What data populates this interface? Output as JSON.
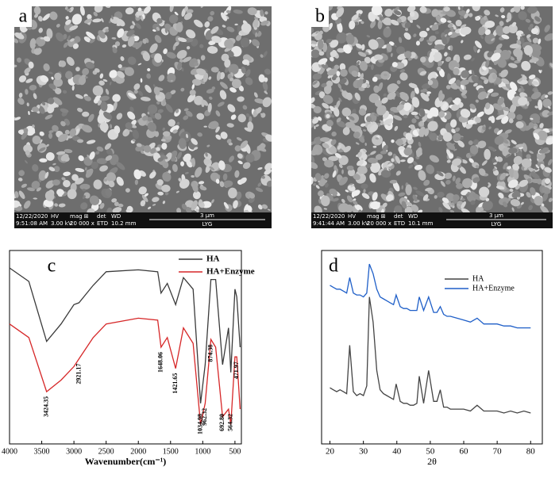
{
  "images": [
    {
      "label": "a",
      "date": "12/22/2020",
      "time": "9:51:08 AM",
      "hv_label": "HV",
      "hv": "3.00 kV",
      "mag_label": "mag ⊞",
      "mag": "20 000 x",
      "det_label": "det",
      "det": "ETD",
      "wd_label": "WD",
      "wd": "10.2 mm",
      "scale": "3 μm",
      "operator": "LYG"
    },
    {
      "label": "b",
      "date": "12/22/2020",
      "time": "9:41:44 AM",
      "hv_label": "HV",
      "hv": "3.00 kV",
      "mag_label": "mag ⊞",
      "mag": "20 000 x",
      "det_label": "det",
      "det": "ETD",
      "wd_label": "WD",
      "wd": "10.1 mm",
      "scale": "3 μm",
      "operator": "LYG"
    }
  ],
  "chart_data": [
    {
      "type": "line",
      "label": "c",
      "x_label": "Wavenumber(cm⁻¹)",
      "x": [
        4000,
        3700,
        3424,
        3200,
        3000,
        2921,
        2700,
        2500,
        2000,
        1700,
        1648,
        1550,
        1421,
        1300,
        1150,
        1034,
        962,
        874,
        800,
        692,
        600,
        564,
        500,
        471,
        420
      ],
      "xlim": [
        4000,
        400
      ],
      "xticks": [
        4000,
        3500,
        3000,
        2500,
        2000,
        1500,
        1000,
        500
      ],
      "ylim": [
        0,
        100
      ],
      "series": [
        {
          "name": "HA",
          "color": "#3a3a3a",
          "values": [
            91,
            84,
            53,
            62,
            72,
            73,
            82,
            89,
            90,
            89,
            78,
            83,
            72,
            86,
            80,
            21,
            41,
            85,
            85,
            41,
            60,
            37,
            80,
            76,
            50
          ]
        },
        {
          "name": "HA+Enzyme",
          "color": "#d62728",
          "values": [
            62,
            55,
            27,
            33,
            40,
            44,
            55,
            62,
            65,
            64,
            50,
            55,
            39,
            60,
            52,
            10,
            21,
            54,
            50,
            14,
            18,
            10,
            45,
            45,
            18
          ]
        }
      ],
      "annotations": [
        3424.35,
        2921.17,
        1648.06,
        1421.65,
        1034.98,
        962.32,
        874.38,
        {
          "value": 692.8,
          "label": "692.80"
        },
        564.32,
        471.97
      ]
    },
    {
      "type": "line",
      "label": "d",
      "x_label": "2θ",
      "x": [
        20,
        21,
        22,
        23,
        24,
        25,
        25.9,
        27,
        28,
        29,
        30,
        31,
        31.8,
        32.9,
        34,
        35,
        36,
        37,
        38,
        39,
        39.8,
        41,
        42,
        43,
        44,
        45,
        46,
        46.7,
        48,
        49.5,
        51,
        52,
        53,
        54,
        55,
        56,
        58,
        60,
        62,
        64,
        66,
        68,
        70,
        72,
        74,
        76,
        78,
        80
      ],
      "xlim": [
        17.5,
        83.5
      ],
      "xticks": [
        20,
        30,
        40,
        50,
        60,
        70,
        80
      ],
      "ylim": [
        0,
        100
      ],
      "series": [
        {
          "name": "HA",
          "color": "#444444",
          "values": [
            29,
            28,
            27,
            28,
            27,
            26,
            51,
            27,
            25,
            26,
            25,
            30,
            76,
            63,
            38,
            28,
            26,
            25,
            24,
            23,
            31,
            22,
            21,
            21,
            20,
            20,
            21,
            35,
            21,
            38,
            22,
            22,
            28,
            19,
            19,
            18,
            18,
            18,
            17,
            20,
            17,
            17,
            17,
            16,
            17,
            16,
            17,
            16
          ]
        },
        {
          "name": "HA+Enzyme",
          "color": "#1f5fc8",
          "values": [
            82,
            81,
            80,
            80,
            79,
            78,
            86,
            78,
            77,
            77,
            76,
            78,
            93,
            88,
            80,
            76,
            75,
            74,
            73,
            72,
            77,
            71,
            70,
            70,
            69,
            69,
            69,
            76,
            69,
            76,
            68,
            68,
            71,
            67,
            66,
            66,
            65,
            64,
            63,
            65,
            62,
            62,
            62,
            61,
            61,
            60,
            60,
            60
          ]
        }
      ]
    }
  ]
}
